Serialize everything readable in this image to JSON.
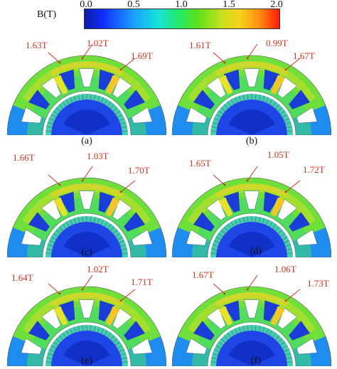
{
  "colorbar": {
    "label": "B(T)",
    "ticks": [
      "0.0",
      "0.5",
      "1.0",
      "1.5",
      "2.0"
    ]
  },
  "panels": [
    {
      "caption": "(a)",
      "labels": [
        "1.63T",
        "1.02T",
        "1.69T"
      ]
    },
    {
      "caption": "(b)",
      "labels": [
        "1.61T",
        "0.99T",
        "1.67T"
      ]
    },
    {
      "caption": "(c)",
      "labels": [
        "1.66T",
        "1.03T",
        "1.70T"
      ]
    },
    {
      "caption": "(d)",
      "labels": [
        "1.65T",
        "1.05T",
        "1.72T"
      ]
    },
    {
      "caption": "(e)",
      "labels": [
        "1.64T",
        "1.02T",
        "1.71T"
      ]
    },
    {
      "caption": "(f)",
      "labels": [
        "1.67T",
        "1.06T",
        "1.73T"
      ]
    }
  ],
  "colors": {
    "annotation": "#d0321c",
    "yoke": "#6fe03a",
    "tooth_mid": "#3fd874",
    "tooth_hot": "#f5c62a",
    "slot": "#1a3cd8",
    "rotor": "#1e46e6",
    "air": "#ffffff"
  }
}
